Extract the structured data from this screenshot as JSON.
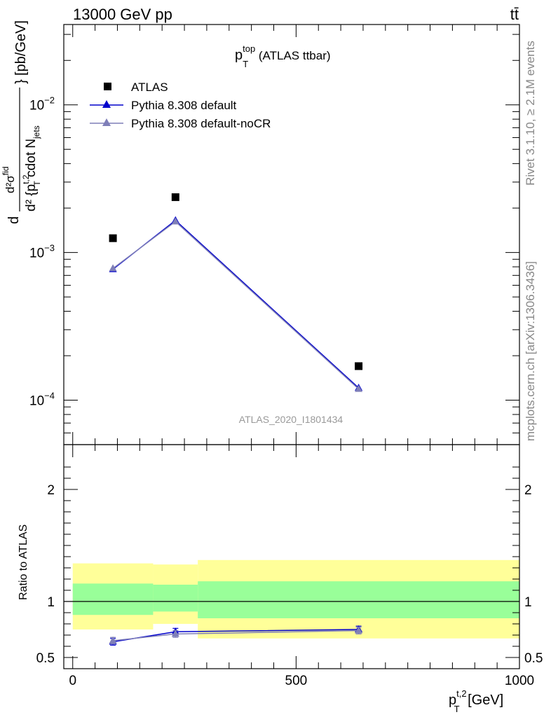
{
  "header": {
    "energy_label": "13000 GeV pp",
    "process_label": "tt̄"
  },
  "side_labels": {
    "rivet": "Rivet 3.1.10, ≥ 2.1M events",
    "mcplots": "mcplots.cern.ch [arXiv:1306.3436]"
  },
  "chart_data": [
    {
      "type": "scatter",
      "panel": "main",
      "title": {
        "main": "p",
        "sub": "T",
        "sup": "top",
        "suffix": " (ATLAS ttbar)"
      },
      "analysis_id": "ATLAS_2020_I1801434",
      "ylabel": {
        "frac_num": "d²σ",
        "frac_num_sup": "fid",
        "frac_den": "d² {p",
        "frac_den_sub": "T",
        "frac_den_sup": "t,2",
        "frac_den_rest": " cdot N",
        "frac_den_rest_sub": "jets",
        "frac_den_close": "}",
        "units": "[pb/GeV]"
      },
      "y_scale": "log",
      "ylim": [
        5e-05,
        0.035
      ],
      "xlim": [
        -20,
        1000
      ],
      "y_tick_labels": [
        {
          "value": 0.01,
          "base": "10",
          "exp": "−2"
        },
        {
          "value": 0.001,
          "base": "10",
          "exp": "−3"
        },
        {
          "value": 0.0001,
          "base": "10",
          "exp": "−4"
        }
      ],
      "legend_position": "top-left",
      "series": [
        {
          "name": "ATLAS",
          "color": "#000000",
          "marker": "square",
          "points": [
            {
              "x": 90,
              "y": 0.00125
            },
            {
              "x": 230,
              "y": 0.00237
            },
            {
              "x": 640,
              "y": 0.00017
            }
          ]
        },
        {
          "name": "Pythia 8.308 default",
          "color": "#0000cc",
          "marker": "triangle",
          "points": [
            {
              "x": 90,
              "y": 0.00077
            },
            {
              "x": 230,
              "y": 0.00165
            },
            {
              "x": 640,
              "y": 0.000121
            }
          ]
        },
        {
          "name": "Pythia 8.308 default-noCR",
          "color": "#7f7fb8",
          "marker": "triangle",
          "points": [
            {
              "x": 90,
              "y": 0.00078
            },
            {
              "x": 230,
              "y": 0.00162
            },
            {
              "x": 640,
              "y": 0.000119
            }
          ]
        }
      ]
    },
    {
      "type": "scatter",
      "panel": "ratio",
      "ylabel": "Ratio to ATLAS",
      "xlabel": {
        "main": "p",
        "sub": "T",
        "sup": "t,2",
        "suffix": " [GeV]"
      },
      "ylim": [
        0.4,
        2.4
      ],
      "xlim": [
        -20,
        1000
      ],
      "x_ticks": [
        0,
        500,
        1000
      ],
      "y_ticks": [
        0.5,
        1,
        2
      ],
      "reference_line": 1,
      "uncertainty_bands": [
        {
          "x0": 0,
          "x1": 180,
          "outer": [
            0.75,
            1.34
          ],
          "inner": [
            0.88,
            1.16
          ]
        },
        {
          "x0": 180,
          "x1": 280,
          "outer": [
            0.8,
            1.33
          ],
          "inner": [
            0.91,
            1.15
          ]
        },
        {
          "x0": 280,
          "x1": 1000,
          "outer": [
            0.67,
            1.37
          ],
          "inner": [
            0.85,
            1.18
          ]
        }
      ],
      "band_colors": {
        "outer": "#ffff99",
        "inner": "#99ff99"
      },
      "series": [
        {
          "name": "Pythia 8.308 default",
          "color": "#0000cc",
          "points": [
            {
              "x": 90,
              "y": 0.64,
              "err": 0.03
            },
            {
              "x": 230,
              "y": 0.73,
              "err": 0.03
            },
            {
              "x": 640,
              "y": 0.75,
              "err": 0.03
            }
          ]
        },
        {
          "name": "Pythia 8.308 default-noCR",
          "color": "#7f7fb8",
          "points": [
            {
              "x": 90,
              "y": 0.65,
              "err": 0.03
            },
            {
              "x": 230,
              "y": 0.71,
              "err": 0.03
            },
            {
              "x": 640,
              "y": 0.74,
              "err": 0.03
            }
          ]
        }
      ]
    }
  ]
}
